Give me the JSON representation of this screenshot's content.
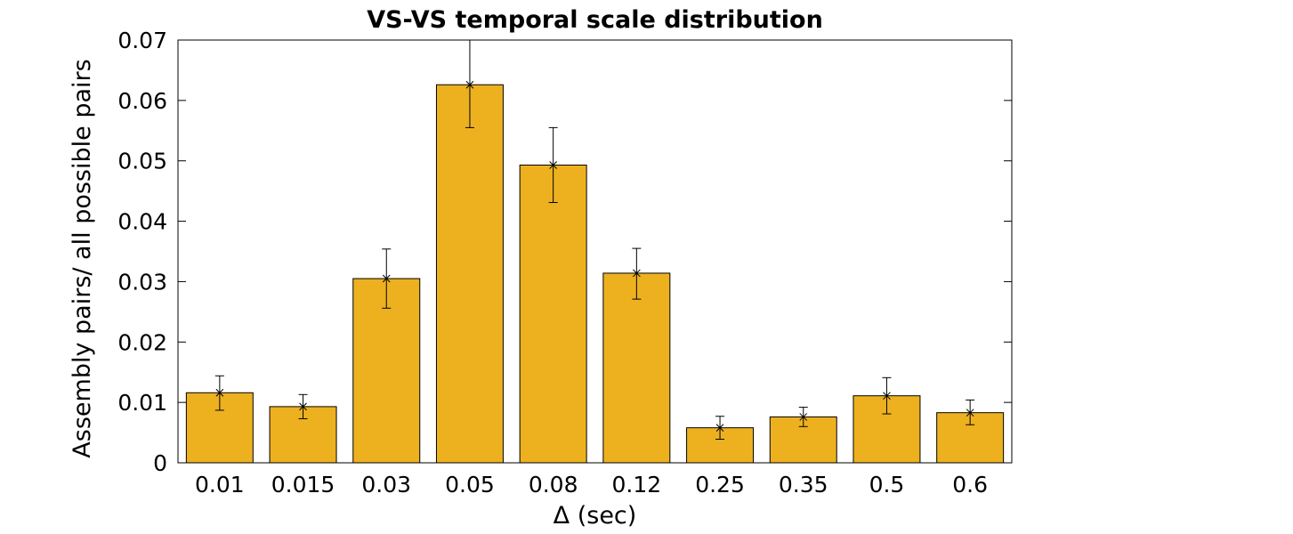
{
  "chart_data": {
    "type": "bar",
    "title": "VS-VS temporal scale distribution",
    "xlabel": "Δ (sec)",
    "ylabel": "Assembly pairs/ all possible pairs",
    "categories": [
      "0.01",
      "0.015",
      "0.03",
      "0.05",
      "0.08",
      "0.12",
      "0.25",
      "0.35",
      "0.5",
      "0.6"
    ],
    "values": [
      0.0116,
      0.0093,
      0.0305,
      0.0626,
      0.0493,
      0.0314,
      0.0058,
      0.0076,
      0.0111,
      0.0083
    ],
    "error_low": [
      0.0087,
      0.0073,
      0.0256,
      0.0555,
      0.0431,
      0.0271,
      0.0039,
      0.006,
      0.0081,
      0.0063
    ],
    "error_high": [
      0.0144,
      0.0113,
      0.0354,
      0.07,
      0.0555,
      0.0355,
      0.0077,
      0.0092,
      0.0141,
      0.0104
    ],
    "ylim": [
      0,
      0.07
    ],
    "yticks": [
      "0",
      "0.01",
      "0.02",
      "0.03",
      "0.04",
      "0.05",
      "0.06",
      "0.07"
    ],
    "grid": false,
    "bar_color": "#EDB120",
    "edge_color": "#000000"
  }
}
